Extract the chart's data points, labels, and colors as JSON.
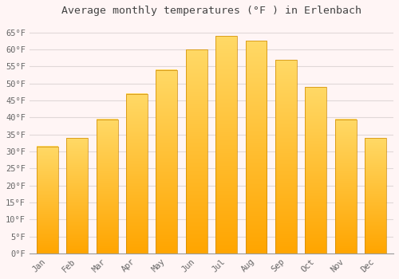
{
  "title": "Average monthly temperatures (°F ) in Erlenbach",
  "months": [
    "Jan",
    "Feb",
    "Mar",
    "Apr",
    "May",
    "Jun",
    "Jul",
    "Aug",
    "Sep",
    "Oct",
    "Nov",
    "Dec"
  ],
  "values": [
    31.5,
    34.0,
    39.5,
    47.0,
    54.0,
    60.0,
    64.0,
    62.5,
    57.0,
    49.0,
    39.5,
    34.0
  ],
  "bar_color_top": "#FFD966",
  "bar_color_bottom": "#FFA500",
  "bar_edge_color": "#CC8800",
  "background_color": "#FFF5F5",
  "plot_bg_color": "#FFF5F5",
  "grid_color": "#E0D8D8",
  "ylim": [
    0,
    68
  ],
  "yticks": [
    0,
    5,
    10,
    15,
    20,
    25,
    30,
    35,
    40,
    45,
    50,
    55,
    60,
    65
  ],
  "title_fontsize": 9.5,
  "tick_fontsize": 7.5,
  "title_color": "#444444",
  "tick_color": "#666666",
  "font_family": "monospace"
}
